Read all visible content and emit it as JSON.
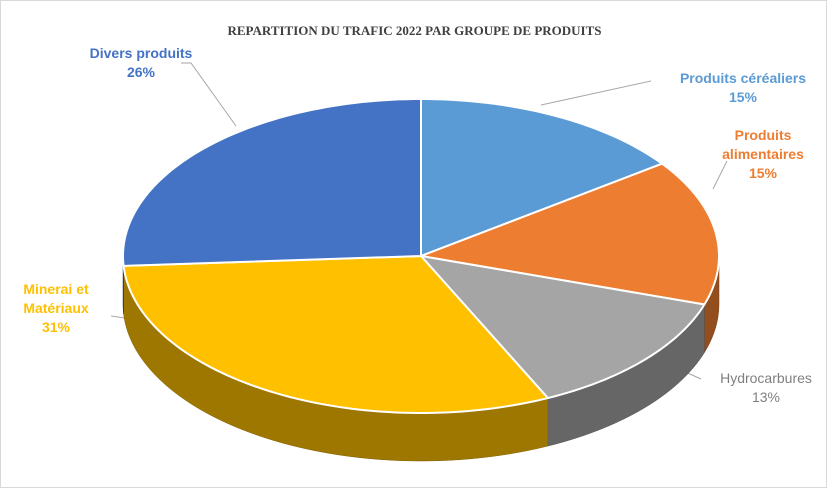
{
  "chart_data": {
    "type": "pie",
    "title": "REPARTITION DU TRAFIC 2022 PAR GROUPE DE PRODUITS",
    "categories": [
      "Produits céréaliers",
      "Produits alimentaires",
      "Hydrocarbures",
      "Minerai et Matériaux",
      "Divers produits"
    ],
    "values": [
      15,
      15,
      13,
      31,
      26
    ],
    "value_labels": [
      "15%",
      "15%",
      "13%",
      "31%",
      "26%"
    ],
    "colors": [
      "#5b9bd5",
      "#ed7d31",
      "#a5a5a5",
      "#ffc000",
      "#4472c4"
    ]
  }
}
